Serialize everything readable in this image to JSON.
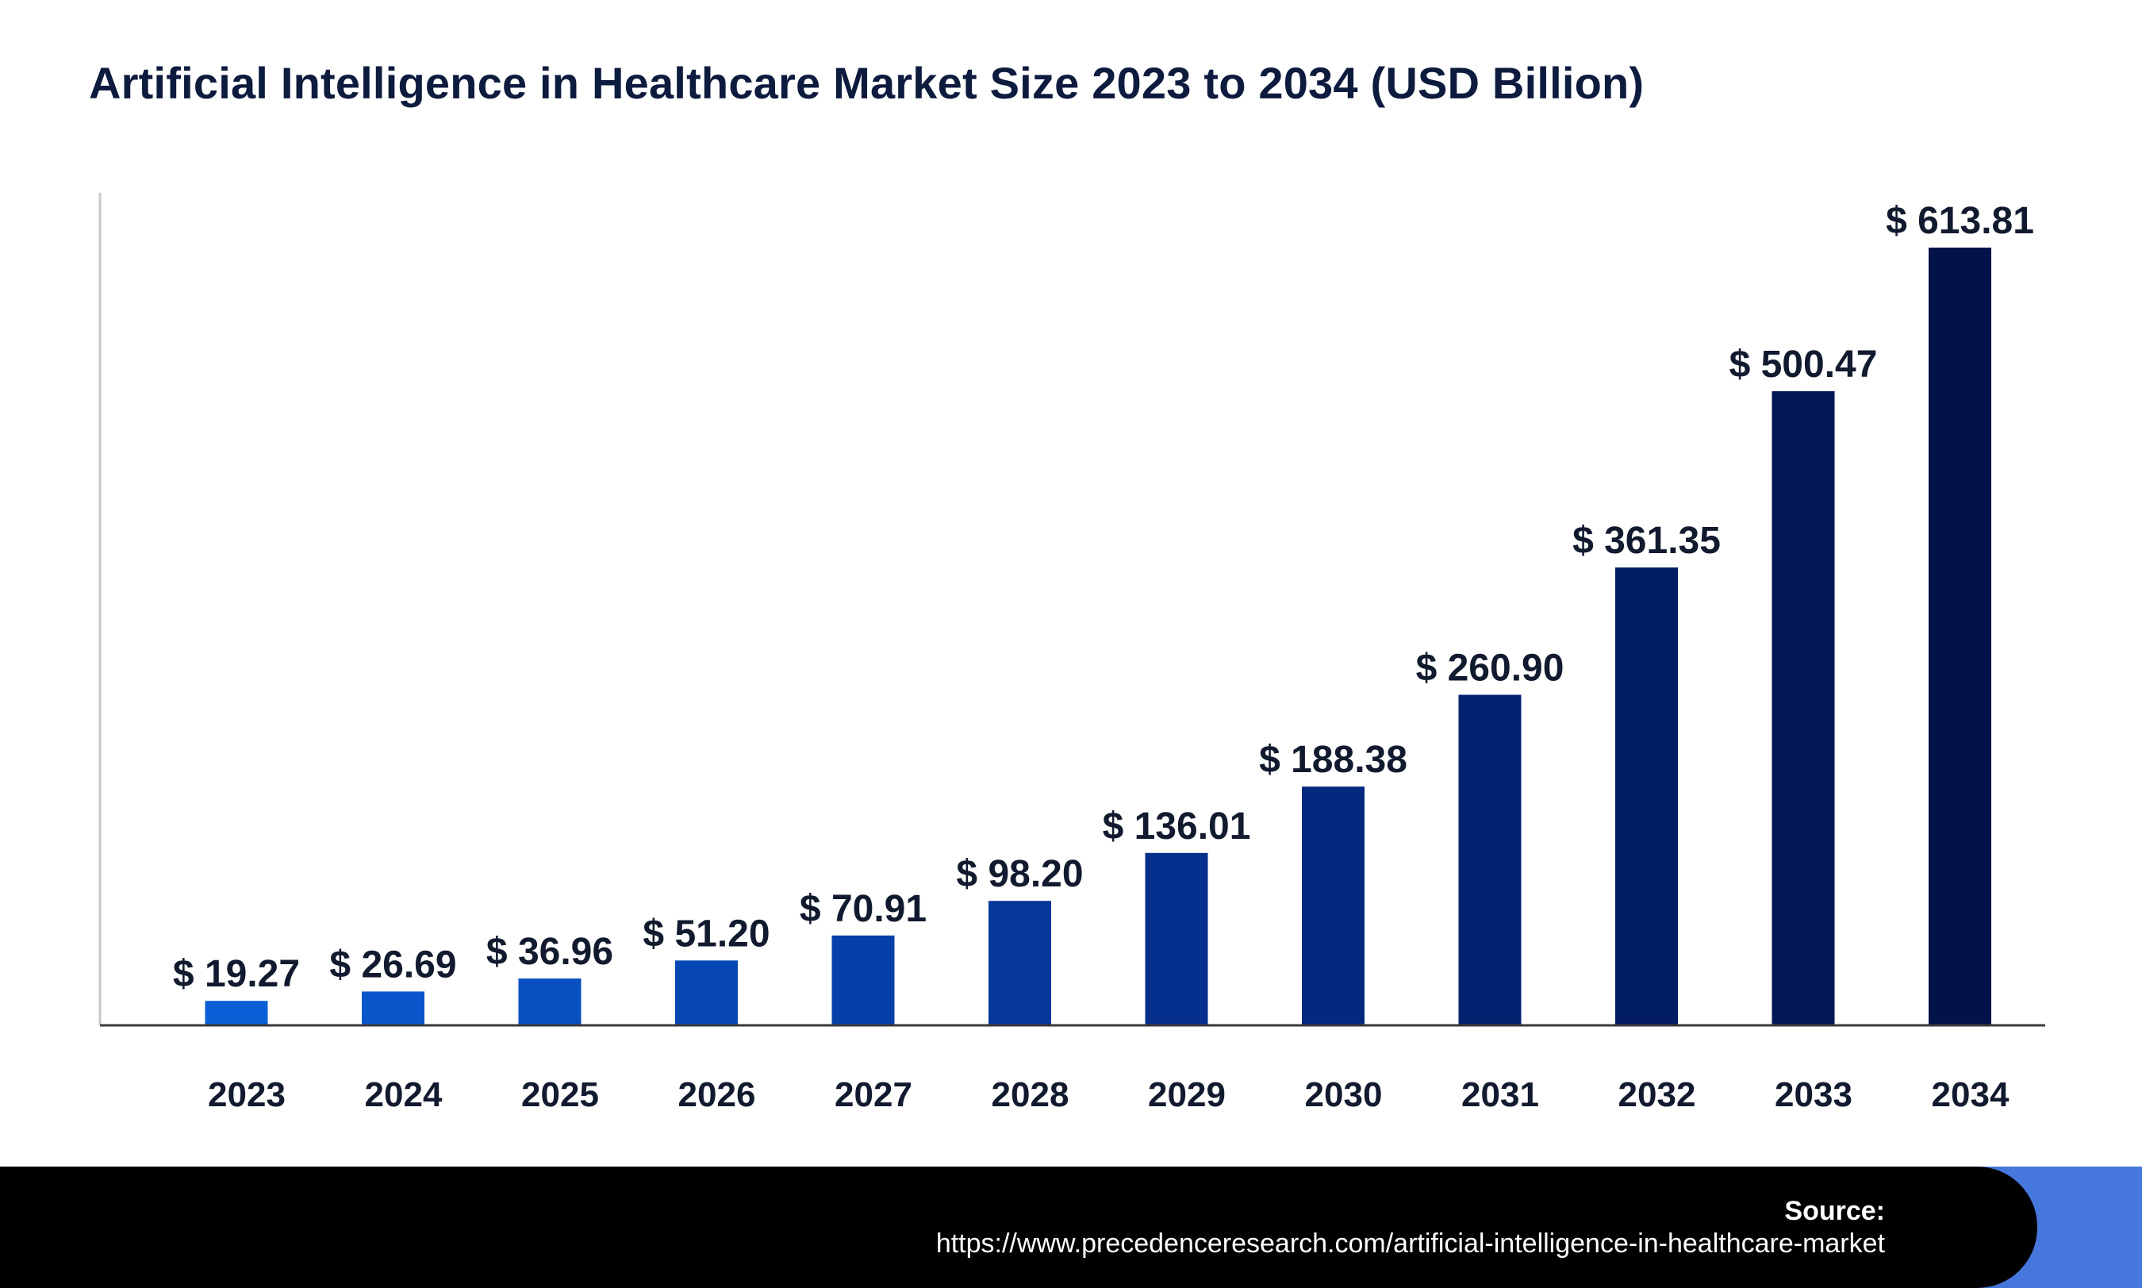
{
  "chart_data": {
    "type": "bar",
    "title": "Artificial Intelligence in Healthcare Market Size 2023 to 2034 (USD Billion)",
    "xlabel": "",
    "ylabel": "",
    "categories": [
      "2023",
      "2024",
      "2025",
      "2026",
      "2027",
      "2028",
      "2029",
      "2030",
      "2031",
      "2032",
      "2033",
      "2034"
    ],
    "values": [
      19.27,
      26.69,
      36.96,
      51.2,
      70.91,
      98.2,
      136.01,
      188.38,
      260.9,
      361.35,
      500.47,
      613.81
    ],
    "value_labels": [
      "$ 19.27",
      "$ 26.69",
      "$ 36.96",
      "$ 51.20",
      "$ 70.91",
      "$ 98.20",
      "$ 136.01",
      "$ 188.38",
      "$ 260.90",
      "$ 361.35",
      "$ 500.47",
      "$ 613.81"
    ],
    "bar_colors": [
      "#0a5fd6",
      "#0957cb",
      "#084fc0",
      "#0747b4",
      "#063fa8",
      "#05379b",
      "#042f8c",
      "#03287e",
      "#03226f",
      "#021c62",
      "#021756",
      "#02124a"
    ],
    "grid": false,
    "legend": "none"
  },
  "footer": {
    "source_label": "Source:",
    "source_url": "https://www.precedenceresearch.com/artificial-intelligence-in-healthcare-market"
  },
  "colors": {
    "title": "#0d1b3e",
    "axis": "#3a3a3a",
    "footer_background": "#000000",
    "footer_accent": "#4577dc",
    "footer_text": "#ffffff"
  }
}
